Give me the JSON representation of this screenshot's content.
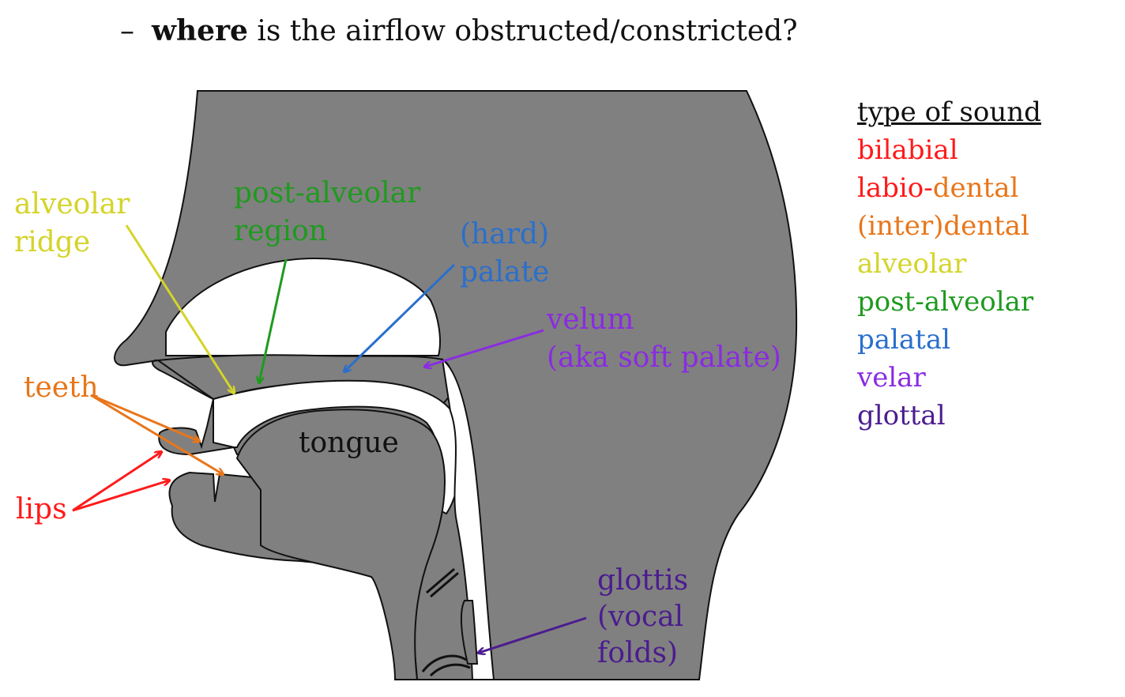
{
  "heading": {
    "dash": "–",
    "bold": "where",
    "rest": "is the airflow obstructed/constricted?"
  },
  "diagram": {
    "labels": {
      "alveolar_ridge": [
        "alveolar",
        "ridge"
      ],
      "post_alveolar_region": [
        "post-alveolar",
        "region"
      ],
      "hard_palate": [
        "(hard)",
        "palate"
      ],
      "velum": [
        "velum",
        "(aka soft palate)"
      ],
      "teeth": "teeth",
      "lips": "lips",
      "tongue": "tongue",
      "glottis": [
        "glottis",
        "(vocal",
        "folds)"
      ]
    },
    "colors": {
      "alveolar": "#d4d42a",
      "post_alveolar": "#1f9a1f",
      "palatal": "#2a6fcc",
      "velar": "#8a2be2",
      "dental": "#e8761a",
      "bilabial": "#ff1a1a",
      "glottal": "#4b1c8f",
      "head_fill": "#808080",
      "outline": "#111111"
    }
  },
  "legend": {
    "title": "type of sound",
    "items": [
      {
        "parts": [
          {
            "text": "bilabial",
            "color": "#ff1a1a"
          }
        ]
      },
      {
        "parts": [
          {
            "text": "labio-",
            "color": "#ff1a1a"
          },
          {
            "text": "dental",
            "color": "#e8761a"
          }
        ]
      },
      {
        "parts": [
          {
            "text": "(inter)dental",
            "color": "#e8761a"
          }
        ]
      },
      {
        "parts": [
          {
            "text": "alveolar",
            "color": "#d4d42a"
          }
        ]
      },
      {
        "parts": [
          {
            "text": "post-alveolar",
            "color": "#1f9a1f"
          }
        ]
      },
      {
        "parts": [
          {
            "text": "palatal",
            "color": "#2a6fcc"
          }
        ]
      },
      {
        "parts": [
          {
            "text": "velar",
            "color": "#8a2be2"
          }
        ]
      },
      {
        "parts": [
          {
            "text": "glottal",
            "color": "#4b1c8f"
          }
        ]
      }
    ]
  }
}
